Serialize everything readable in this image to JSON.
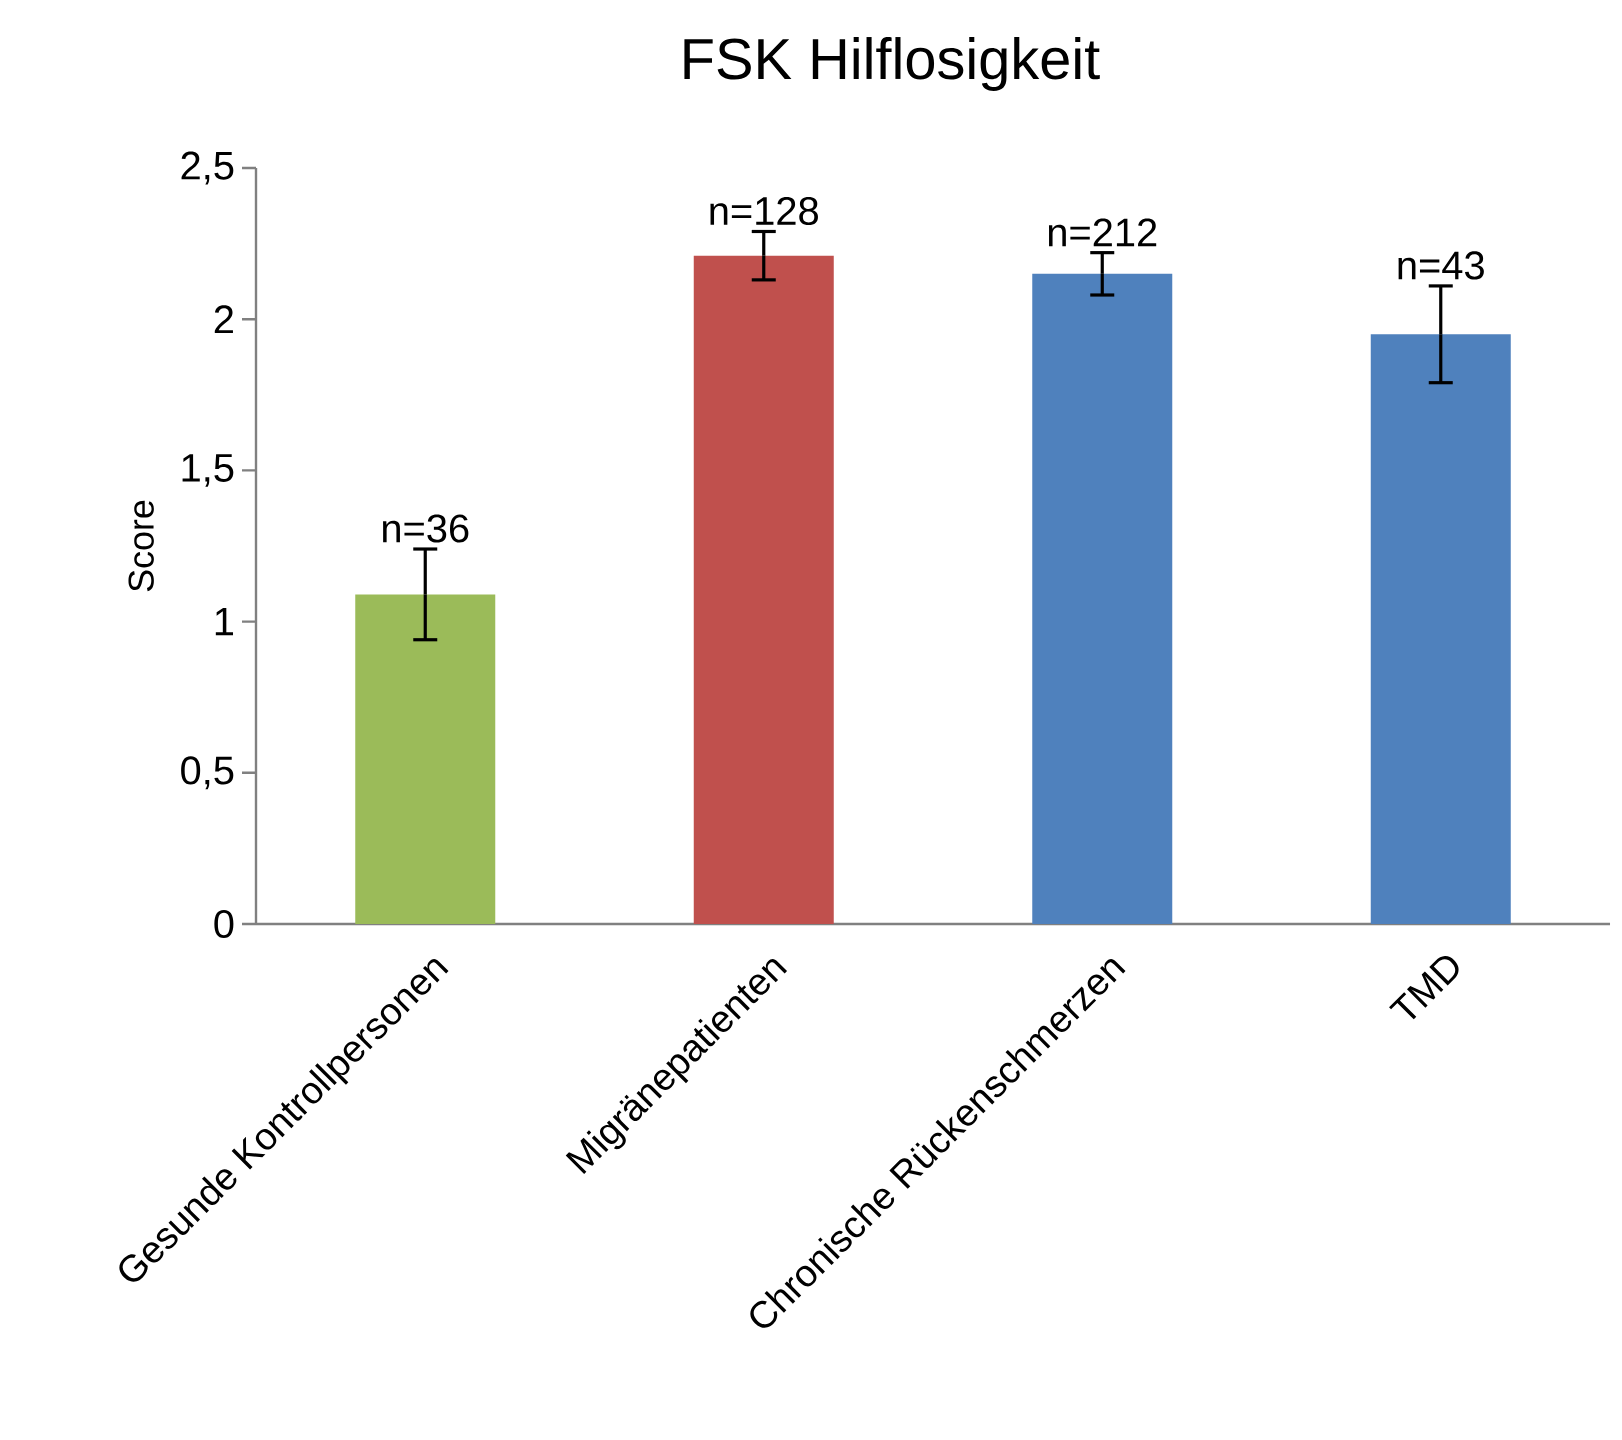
{
  "chart_data": {
    "type": "bar",
    "title": "FSK Hilflosigkeit",
    "ylabel": "Score",
    "categories": [
      "Gesunde Kontrollpersonen",
      "Migränepatienten",
      "Chronische Rückenschmerzen",
      "TMD"
    ],
    "values": [
      1.09,
      2.21,
      2.15,
      1.95
    ],
    "colors": [
      "#9bbb59",
      "#c0504d",
      "#4f81bd",
      "#4f81bd"
    ],
    "errors": [
      0.15,
      0.08,
      0.07,
      0.16
    ],
    "ylim": [
      0,
      2.5
    ],
    "yticks": [
      0,
      {
        "value": 0.5,
        "label": "0,5"
      },
      1,
      {
        "value": 1.5,
        "label": "1,5"
      },
      2,
      {
        "value": 2.5,
        "label": "2,5"
      }
    ],
    "annotations": [
      {
        "text": "n=36",
        "x": "Gesunde Kontrollpersonen",
        "y": 1.24
      },
      {
        "text": "n=128",
        "x": "Migränepatienten",
        "y": 2.29
      },
      {
        "text": "n=212",
        "x": "Chronische Rückenschmerzen",
        "y": 2.22
      },
      {
        "text": "n=43",
        "x": "TMD",
        "y": 2.11
      }
    ]
  }
}
